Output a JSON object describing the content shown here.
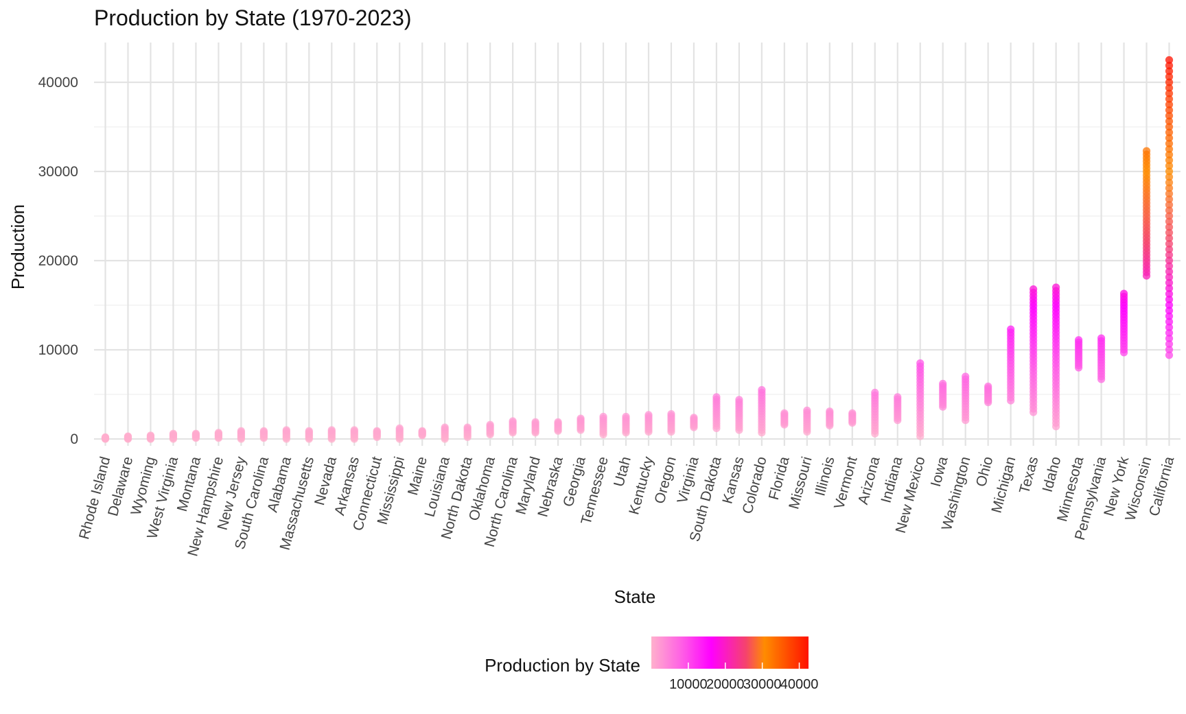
{
  "chart_data": {
    "type": "scatter",
    "title": "Production by State (1970-2023)",
    "xlabel": "State",
    "ylabel": "Production",
    "ylim": [
      -1000,
      44000
    ],
    "y_ticks": [
      "0",
      "10000",
      "20000",
      "30000",
      "40000"
    ],
    "grid": true,
    "legend": {
      "title": "Production by State",
      "position": "bottom",
      "ticks": [
        "10000",
        "20000",
        "30000",
        "40000"
      ],
      "colors": [
        "#ffb0cc",
        "#ff5ce6",
        "#ff00ff",
        "#f5426e",
        "#ff8c00",
        "#ff1200"
      ]
    },
    "categories": [
      "Rhode Island",
      "Delaware",
      "Wyoming",
      "West Virginia",
      "Montana",
      "New Hampshire",
      "New Jersey",
      "South Carolina",
      "Alabama",
      "Massachusetts",
      "Nevada",
      "Arkansas",
      "Connecticut",
      "Mississippi",
      "Maine",
      "Louisiana",
      "North Dakota",
      "Oklahoma",
      "North Carolina",
      "Maryland",
      "Nebraska",
      "Georgia",
      "Tennessee",
      "Utah",
      "Kentucky",
      "Oregon",
      "Virginia",
      "South Dakota",
      "Kansas",
      "Colorado",
      "Florida",
      "Missouri",
      "Illinois",
      "Vermont",
      "Arizona",
      "Indiana",
      "New Mexico",
      "Iowa",
      "Washington",
      "Ohio",
      "Michigan",
      "Texas",
      "Idaho",
      "Minnesota",
      "Pennsylvania",
      "New York",
      "Wisconsin",
      "California"
    ],
    "ranges": [
      [
        0,
        200
      ],
      [
        0,
        300
      ],
      [
        0,
        400
      ],
      [
        0,
        600
      ],
      [
        100,
        600
      ],
      [
        100,
        700
      ],
      [
        0,
        900
      ],
      [
        100,
        900
      ],
      [
        0,
        1000
      ],
      [
        0,
        900
      ],
      [
        0,
        1000
      ],
      [
        0,
        1000
      ],
      [
        200,
        900
      ],
      [
        0,
        1200
      ],
      [
        400,
        900
      ],
      [
        0,
        1300
      ],
      [
        200,
        1300
      ],
      [
        500,
        1600
      ],
      [
        700,
        2000
      ],
      [
        700,
        1900
      ],
      [
        900,
        1900
      ],
      [
        1000,
        2300
      ],
      [
        500,
        2500
      ],
      [
        700,
        2500
      ],
      [
        800,
        2700
      ],
      [
        800,
        2800
      ],
      [
        1300,
        2400
      ],
      [
        1200,
        4700
      ],
      [
        1000,
        4400
      ],
      [
        700,
        5500
      ],
      [
        1600,
        2900
      ],
      [
        800,
        3200
      ],
      [
        1500,
        3100
      ],
      [
        1800,
        2900
      ],
      [
        600,
        5200
      ],
      [
        2100,
        4700
      ],
      [
        300,
        8500
      ],
      [
        3600,
        6200
      ],
      [
        2100,
        7000
      ],
      [
        4100,
        5900
      ],
      [
        4300,
        12300
      ],
      [
        3000,
        16800
      ],
      [
        1400,
        17000
      ],
      [
        8000,
        11100
      ],
      [
        6700,
        11300
      ],
      [
        9700,
        16300
      ],
      [
        18300,
        32300
      ],
      [
        9400,
        42500
      ]
    ]
  }
}
